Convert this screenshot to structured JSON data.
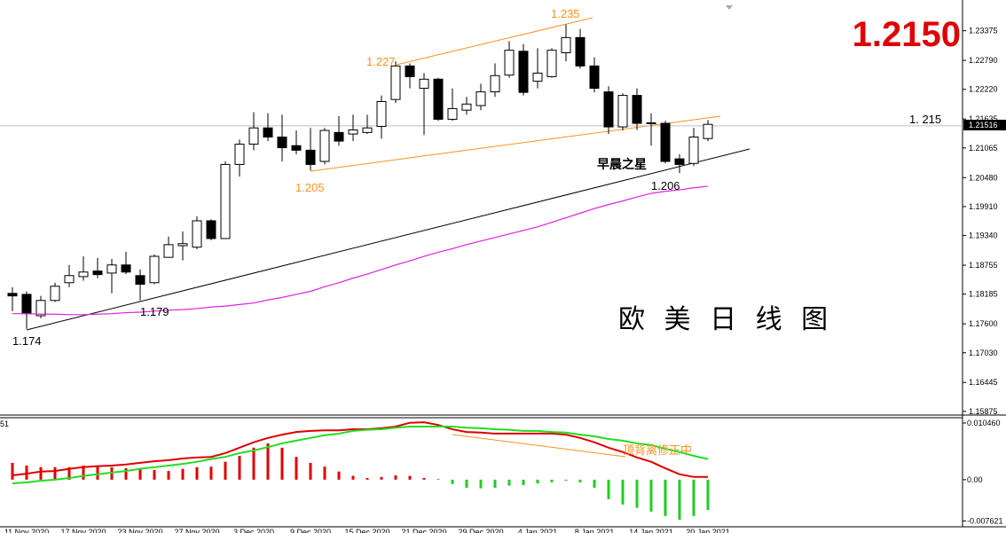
{
  "chart_data": [
    {
      "type": "candlestick",
      "categories": [
        null,
        "11 Nov 2020",
        null,
        null,
        null,
        "17 Nov 2020",
        null,
        null,
        null,
        "23 Nov 2020",
        null,
        null,
        null,
        "27 Nov 2020",
        null,
        null,
        null,
        "3 Dec 2020",
        null,
        null,
        null,
        "9 Dec 2020",
        null,
        null,
        null,
        "15 Dec 2020",
        null,
        null,
        null,
        "21 Dec 2020",
        null,
        null,
        null,
        "29 Dec 2020",
        null,
        null,
        null,
        "4 Jan 2021",
        null,
        null,
        null,
        "8 Jan 2021",
        null,
        null,
        null,
        "14 Jan 2021",
        null,
        null,
        null,
        "20 Jan 2021"
      ],
      "open": [
        1.182,
        1.1818,
        1.1776,
        1.1806,
        1.1841,
        1.1853,
        1.1864,
        1.186,
        1.1876,
        1.1855,
        1.1841,
        1.1891,
        1.1914,
        1.1911,
        1.1963,
        1.1928,
        1.2074,
        1.2114,
        1.2146,
        1.2128,
        1.2111,
        1.2102,
        1.208,
        1.2137,
        1.2134,
        1.2137,
        1.2149,
        1.2202,
        1.2268,
        1.2224,
        1.2242,
        1.2163,
        1.2181,
        1.219,
        1.2217,
        1.225,
        1.2297,
        1.2238,
        1.2247,
        1.2294,
        1.2324,
        1.2268,
        1.2217,
        1.2148,
        1.221,
        1.2156,
        1.2155,
        1.2085,
        1.2076,
        1.2125
      ],
      "high": [
        1.1832,
        1.1824,
        1.1815,
        1.1841,
        1.1876,
        1.1893,
        1.189,
        1.1888,
        1.1902,
        1.1867,
        1.1897,
        1.1932,
        1.1942,
        1.1972,
        1.1966,
        1.208,
        1.2123,
        1.2177,
        1.2175,
        1.2172,
        1.2141,
        1.2146,
        1.2146,
        1.2169,
        1.2172,
        1.2172,
        1.221,
        1.2277,
        1.2273,
        1.2254,
        1.2245,
        1.2224,
        1.2207,
        1.2233,
        1.2273,
        1.2317,
        1.2311,
        1.2303,
        1.2303,
        1.235,
        1.2341,
        1.2285,
        1.2228,
        1.2214,
        1.2224,
        1.2175,
        1.216,
        1.2094,
        1.2146,
        1.2162
      ],
      "low": [
        1.1785,
        1.175,
        1.1771,
        1.1803,
        1.1832,
        1.1845,
        1.185,
        1.182,
        1.1858,
        1.1806,
        1.1838,
        1.189,
        1.1885,
        1.1907,
        1.1925,
        1.1928,
        1.205,
        1.2102,
        1.212,
        1.208,
        1.2094,
        1.2062,
        1.2074,
        1.2111,
        1.212,
        1.2134,
        1.2125,
        1.2195,
        1.2224,
        1.2132,
        1.216,
        1.216,
        1.2172,
        1.2181,
        1.2207,
        1.2245,
        1.221,
        1.2224,
        1.2245,
        1.2277,
        1.2263,
        1.2216,
        1.2134,
        1.2141,
        1.2142,
        1.2111,
        1.2076,
        1.2057,
        1.2071,
        1.212
      ],
      "close": [
        1.1815,
        1.178,
        1.1806,
        1.1834,
        1.1855,
        1.1862,
        1.1857,
        1.1876,
        1.1862,
        1.1838,
        1.1893,
        1.1916,
        1.1918,
        1.1963,
        1.1928,
        1.2074,
        1.2114,
        1.2146,
        1.2128,
        1.2107,
        1.2102,
        1.2074,
        1.2141,
        1.212,
        1.2142,
        1.2146,
        1.2198,
        1.2268,
        1.2247,
        1.2242,
        1.2163,
        1.2184,
        1.2193,
        1.2217,
        1.2249,
        1.2299,
        1.2216,
        1.2254,
        1.2299,
        1.2324,
        1.2268,
        1.2224,
        1.2148,
        1.221,
        1.2155,
        1.2155,
        1.208,
        1.2074,
        1.2128,
        1.2153
      ],
      "up_color": "#ffffff",
      "down_color": "#000000",
      "ma": {
        "color": "#e020e0",
        "values": [
          1.178,
          1.178,
          1.1779,
          1.1779,
          1.1778,
          1.1778,
          1.1779,
          1.178,
          1.1782,
          1.1783,
          1.1785,
          1.1787,
          1.1788,
          1.179,
          1.1793,
          1.1795,
          1.1798,
          1.1801,
          1.1807,
          1.1812,
          1.1818,
          1.1824,
          1.1833,
          1.1841,
          1.185,
          1.1858,
          1.1867,
          1.1876,
          1.1884,
          1.1893,
          1.1901,
          1.1908,
          1.1916,
          1.1923,
          1.193,
          1.1937,
          1.1944,
          1.1951,
          1.196,
          1.1969,
          1.1978,
          1.1987,
          1.1995,
          1.2002,
          1.201,
          1.2017,
          1.2021,
          1.2024,
          1.2028,
          1.2031
        ]
      },
      "ylim": [
        1.1582,
        1.2398
      ],
      "yticks": [
        1.23375,
        {
          "value": 1.2279,
          "label": "1.22790"
        },
        {
          "value": 1.2222,
          "label": "1.22220"
        },
        1.21635,
        1.21065,
        {
          "value": 1.2048,
          "label": "1.20480"
        },
        {
          "value": 1.1991,
          "label": "1.19910"
        },
        {
          "value": 1.1934,
          "label": "1.19340"
        },
        1.18755,
        1.18185,
        {
          "value": 1.176,
          "label": "1.17600"
        },
        {
          "value": 1.1703,
          "label": "1.17030"
        },
        1.16445,
        1.15875
      ],
      "current_price": 1.21516,
      "hline": {
        "value": 1.215,
        "label": "1. 215"
      },
      "annotations": [
        "1.2150",
        "1.235",
        "1.227",
        "1.205",
        "1.174",
        "1.179",
        "1.206",
        "早晨之星",
        "欧 美 日 线 图"
      ]
    },
    {
      "type": "macd",
      "indicator_label": "51",
      "histogram": {
        "up_color": "#e00000",
        "down_color": "#22cc22",
        "values": [
          0.0031,
          0.0026,
          0.0023,
          0.0023,
          0.0023,
          0.0026,
          0.0026,
          0.0023,
          0.0021,
          0.002,
          0.0018,
          0.0016,
          0.002,
          0.0023,
          0.0024,
          0.0033,
          0.0044,
          0.0059,
          0.0067,
          0.0059,
          0.0042,
          0.0031,
          0.0024,
          0.0015,
          0.0007,
          0.0003,
          0.0005,
          0.0008,
          0.0007,
          0.0003,
          0.0001,
          -0.0008,
          -0.0015,
          -0.0016,
          -0.0015,
          -0.0011,
          -0.001,
          -0.0007,
          -0.0005,
          -0.0002,
          -0.0005,
          -0.0015,
          -0.0036,
          -0.0046,
          -0.0052,
          -0.0059,
          -0.0067,
          -0.0074,
          -0.0067,
          -0.0056
        ]
      },
      "series": [
        {
          "color": "#dd0000",
          "values": [
            0.0008,
            0.0011,
            0.0015,
            0.0016,
            0.002,
            0.0023,
            0.0025,
            0.0026,
            0.0028,
            0.0031,
            0.0034,
            0.0036,
            0.0039,
            0.0041,
            0.0042,
            0.0049,
            0.0059,
            0.0069,
            0.0077,
            0.0083,
            0.0088,
            0.009,
            0.0091,
            0.0091,
            0.0093,
            0.0093,
            0.0095,
            0.0098,
            0.0105,
            0.0106,
            0.0101,
            0.0093,
            0.0088,
            0.0087,
            0.0085,
            0.0085,
            0.0085,
            0.0085,
            0.0085,
            0.0083,
            0.0077,
            0.0069,
            0.0059,
            0.0051,
            0.0041,
            0.0033,
            0.0021,
            0.001,
            0.0005,
            0.0005
          ]
        },
        {
          "color": "#22dd22",
          "values": [
            -0.0007,
            -0.0005,
            -0.0002,
            0,
            0.0003,
            0.0007,
            0.001,
            0.0013,
            0.0016,
            0.002,
            0.0023,
            0.0026,
            0.0029,
            0.0033,
            0.0038,
            0.0042,
            0.0049,
            0.0054,
            0.006,
            0.0067,
            0.0072,
            0.0077,
            0.0082,
            0.0085,
            0.009,
            0.0092,
            0.0093,
            0.0096,
            0.0098,
            0.0098,
            0.0098,
            0.0098,
            0.0096,
            0.0095,
            0.0093,
            0.0092,
            0.009,
            0.009,
            0.0088,
            0.0087,
            0.0083,
            0.008,
            0.0075,
            0.0072,
            0.0067,
            0.0064,
            0.0057,
            0.0051,
            0.0044,
            0.0038
          ]
        }
      ],
      "ylim": [
        -0.0087,
        0.0116
      ],
      "yticks": [
        {
          "value": 0.01046,
          "label": "0.010460"
        },
        {
          "value": 0,
          "label": "0.00"
        },
        {
          "value": -0.007621,
          "label": "-0.007621"
        }
      ],
      "annotation": "顶背离修正中"
    }
  ]
}
